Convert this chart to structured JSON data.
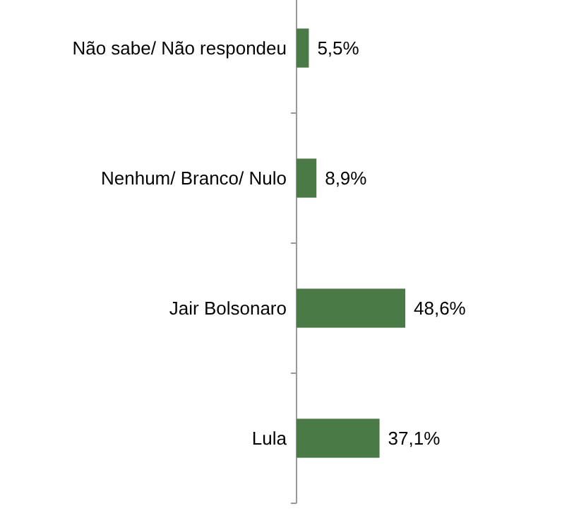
{
  "chart_data": {
    "type": "bar",
    "orientation": "horizontal",
    "categories": [
      "Não sabe/ Não respondeu",
      "Nenhum/ Branco/ Nulo",
      "Jair Bolsonaro",
      "Lula"
    ],
    "values": [
      5.5,
      8.9,
      48.6,
      37.1
    ],
    "value_labels": [
      "5,5%",
      "8,9%",
      "48,6%",
      "37,1%"
    ],
    "color": "#4a7a45"
  }
}
